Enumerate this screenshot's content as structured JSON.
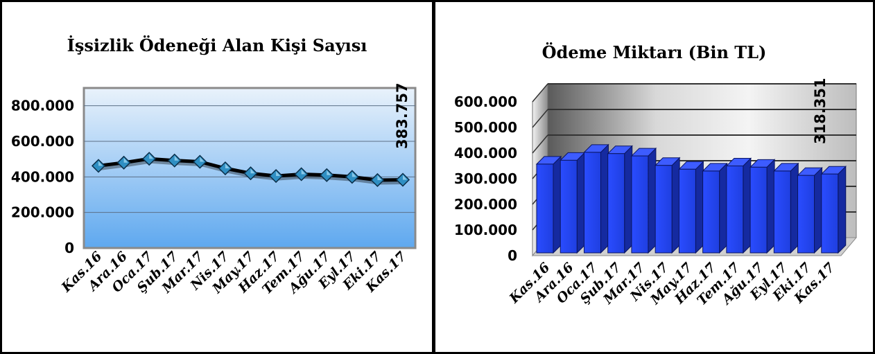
{
  "colors": {
    "line": "#000000",
    "marker": "#2f8fc3",
    "bar_front": "#1f3fe0",
    "bar_side": "#152aa0",
    "bar_top": "#3d5cff"
  },
  "chart_data": [
    {
      "type": "line",
      "title": "İşsizlik Ödeneği Alan Kişi Sayısı",
      "categories": [
        "Kas.16",
        "Ara.16",
        "Oca.17",
        "Şub.17",
        "Mar.17",
        "Nis.17",
        "May.17",
        "Haz.17",
        "Tem.17",
        "Ağu.17",
        "Eyl.17",
        "Eki.17",
        "Kas.17"
      ],
      "values": [
        462000,
        480000,
        502000,
        492000,
        485000,
        448000,
        420000,
        405000,
        415000,
        410000,
        400000,
        382000,
        383757
      ],
      "ylim": [
        0,
        900000
      ],
      "yticks": [
        "0",
        "200.000",
        "400.000",
        "600.000",
        "800.000"
      ],
      "ytick_values": [
        0,
        200000,
        400000,
        600000,
        800000
      ],
      "data_label": "383.757",
      "grid": true
    },
    {
      "type": "bar",
      "title": "Ödeme Miktarı (Bin TL)",
      "categories": [
        "Kas.16",
        "Ara.16",
        "Oca.17",
        "Şub.17",
        "Mar.17",
        "Nis.17",
        "May.17",
        "Haz.17",
        "Tem.17",
        "Ağu.17",
        "Eyl.17",
        "Eki.17",
        "Kas.17"
      ],
      "values": [
        357000,
        372000,
        403000,
        398000,
        389000,
        352000,
        337000,
        330000,
        350000,
        345000,
        330000,
        313000,
        318351
      ],
      "ylim": [
        0,
        600000
      ],
      "yticks": [
        "0",
        "100.000",
        "200.000",
        "300.000",
        "400.000",
        "500.000",
        "600.000"
      ],
      "ytick_values": [
        0,
        100000,
        200000,
        300000,
        400000,
        500000,
        600000
      ],
      "data_label": "318.351",
      "grid": true
    }
  ]
}
